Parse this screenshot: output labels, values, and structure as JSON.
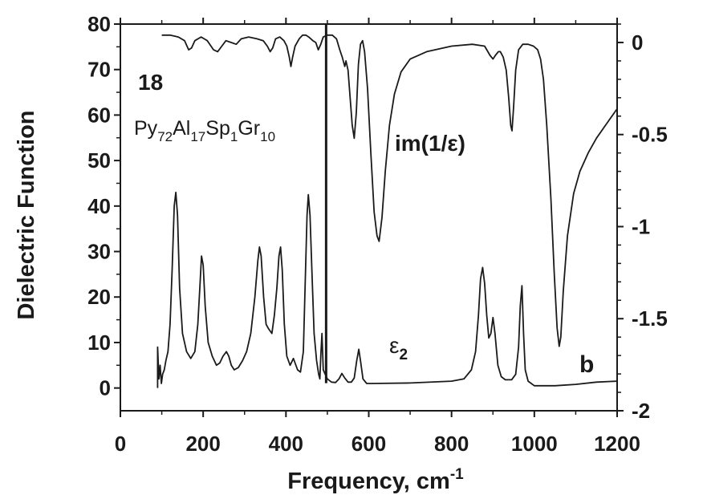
{
  "chart_data": {
    "type": "line",
    "title": "",
    "xlabel": "Frequency,  cm",
    "xlabel_superscript": "-1",
    "ylabel": "Dielectric  Function",
    "xlim": [
      0,
      1200
    ],
    "ylim": [
      -5,
      80
    ],
    "y2lim": [
      -2,
      0.1
    ],
    "x_ticks": [
      0,
      200,
      400,
      600,
      800,
      1000,
      1200
    ],
    "y_ticks": [
      0,
      10,
      20,
      30,
      40,
      50,
      60,
      70,
      80
    ],
    "y2_ticks": [
      0,
      -0.5,
      -1,
      -1.5,
      -2
    ],
    "y2_tick_labels": [
      "0",
      "-0.5",
      "-1",
      "-1.5",
      "-2"
    ],
    "grid": false,
    "annotations": {
      "sample_number": "18",
      "composition": [
        {
          "t": "Py",
          "sub": false
        },
        {
          "t": "72",
          "sub": true
        },
        {
          "t": "Al",
          "sub": false
        },
        {
          "t": "17",
          "sub": true
        },
        {
          "t": "Sp",
          "sub": false
        },
        {
          "t": "1",
          "sub": true
        },
        {
          "t": "Gr",
          "sub": false
        },
        {
          "t": "10",
          "sub": true
        }
      ],
      "im_label": "im(1/ε)",
      "eps_label": "ε",
      "eps_sub": "2",
      "panel_label": "b"
    },
    "divider_x": 497,
    "series": [
      {
        "axis": "left",
        "points": [
          [
            90,
            0
          ],
          [
            90,
            9
          ],
          [
            93,
            2
          ],
          [
            96,
            5
          ],
          [
            99,
            1
          ],
          [
            102,
            3
          ],
          [
            106,
            4
          ],
          [
            110,
            6
          ],
          [
            115,
            8
          ],
          [
            120,
            14
          ],
          [
            125,
            26
          ],
          [
            130,
            40
          ],
          [
            134,
            43
          ],
          [
            138,
            38
          ],
          [
            143,
            22
          ],
          [
            150,
            12
          ],
          [
            160,
            8
          ],
          [
            170,
            6.5
          ],
          [
            180,
            8
          ],
          [
            187,
            14
          ],
          [
            192,
            22
          ],
          [
            196,
            29
          ],
          [
            200,
            27
          ],
          [
            205,
            18
          ],
          [
            212,
            10
          ],
          [
            222,
            7
          ],
          [
            232,
            5
          ],
          [
            240,
            5.5
          ],
          [
            248,
            7
          ],
          [
            256,
            8
          ],
          [
            262,
            7
          ],
          [
            268,
            5
          ],
          [
            275,
            4
          ],
          [
            285,
            4.5
          ],
          [
            295,
            6
          ],
          [
            305,
            8
          ],
          [
            315,
            12
          ],
          [
            325,
            20
          ],
          [
            332,
            28
          ],
          [
            336,
            31
          ],
          [
            340,
            29
          ],
          [
            346,
            20
          ],
          [
            352,
            14
          ],
          [
            358,
            13
          ],
          [
            366,
            12
          ],
          [
            372,
            16
          ],
          [
            378,
            22
          ],
          [
            383,
            29
          ],
          [
            387,
            31
          ],
          [
            391,
            26
          ],
          [
            396,
            14
          ],
          [
            402,
            7
          ],
          [
            410,
            5
          ],
          [
            418,
            6.5
          ],
          [
            422,
            5.5
          ],
          [
            428,
            4
          ],
          [
            435,
            3.5
          ],
          [
            442,
            8
          ],
          [
            447,
            25
          ],
          [
            451,
            38
          ],
          [
            454,
            42.5
          ],
          [
            458,
            38
          ],
          [
            463,
            25
          ],
          [
            468,
            12
          ],
          [
            474,
            6
          ],
          [
            479,
            3
          ],
          [
            482,
            2
          ],
          [
            484,
            7
          ],
          [
            487,
            12
          ],
          [
            490,
            4
          ],
          [
            495,
            3
          ],
          [
            500,
            2
          ],
          [
            510,
            1.3
          ],
          [
            520,
            1.2
          ],
          [
            528,
            2
          ],
          [
            535,
            3.2
          ],
          [
            542,
            2.2
          ],
          [
            550,
            1.3
          ],
          [
            558,
            1.3
          ],
          [
            565,
            2.2
          ],
          [
            571,
            6
          ],
          [
            576,
            8.5
          ],
          [
            580,
            6
          ],
          [
            586,
            2
          ],
          [
            595,
            1
          ],
          [
            610,
            1
          ],
          [
            700,
            1.1
          ],
          [
            800,
            1.5
          ],
          [
            830,
            2
          ],
          [
            848,
            4
          ],
          [
            858,
            8
          ],
          [
            865,
            16
          ],
          [
            870,
            24
          ],
          [
            875,
            26.5
          ],
          [
            880,
            23
          ],
          [
            885,
            16
          ],
          [
            890,
            11
          ],
          [
            895,
            12
          ],
          [
            900,
            15.5
          ],
          [
            905,
            12
          ],
          [
            912,
            5
          ],
          [
            920,
            2.5
          ],
          [
            930,
            1.8
          ],
          [
            945,
            1.8
          ],
          [
            955,
            3
          ],
          [
            962,
            9
          ],
          [
            966,
            18
          ],
          [
            970,
            22.5
          ],
          [
            974,
            12
          ],
          [
            978,
            4
          ],
          [
            985,
            1.5
          ],
          [
            1000,
            0.5
          ],
          [
            1050,
            0.5
          ],
          [
            1100,
            0.8
          ],
          [
            1150,
            1.3
          ],
          [
            1200,
            1.5
          ]
        ]
      },
      {
        "axis": "right",
        "points": [
          [
            100,
            0.04
          ],
          [
            120,
            0.04
          ],
          [
            140,
            0.03
          ],
          [
            155,
            0.01
          ],
          [
            165,
            -0.04
          ],
          [
            172,
            -0.03
          ],
          [
            180,
            0.01
          ],
          [
            195,
            0.03
          ],
          [
            210,
            0.01
          ],
          [
            225,
            -0.04
          ],
          [
            235,
            -0.05
          ],
          [
            245,
            -0.02
          ],
          [
            255,
            0.01
          ],
          [
            268,
            0.0
          ],
          [
            280,
            -0.01
          ],
          [
            292,
            0.02
          ],
          [
            310,
            0.03
          ],
          [
            330,
            0.02
          ],
          [
            345,
            0.01
          ],
          [
            355,
            -0.02
          ],
          [
            362,
            -0.05
          ],
          [
            368,
            -0.03
          ],
          [
            375,
            0.02
          ],
          [
            385,
            0.03
          ],
          [
            395,
            0.01
          ],
          [
            402,
            -0.02
          ],
          [
            408,
            -0.08
          ],
          [
            412,
            -0.13
          ],
          [
            416,
            -0.08
          ],
          [
            422,
            -0.02
          ],
          [
            432,
            0.02
          ],
          [
            440,
            0.04
          ],
          [
            448,
            0.04
          ],
          [
            455,
            0.03
          ],
          [
            465,
            0.01
          ],
          [
            472,
            0.0
          ],
          [
            478,
            -0.04
          ],
          [
            484,
            -0.01
          ],
          [
            490,
            0.03
          ],
          [
            500,
            0.04
          ],
          [
            512,
            0.04
          ],
          [
            522,
            0.02
          ],
          [
            530,
            -0.04
          ],
          [
            536,
            -0.08
          ],
          [
            542,
            -0.13
          ],
          [
            545,
            -0.1
          ],
          [
            550,
            -0.15
          ],
          [
            555,
            -0.3
          ],
          [
            560,
            -0.45
          ],
          [
            565,
            -0.52
          ],
          [
            570,
            -0.38
          ],
          [
            575,
            -0.12
          ],
          [
            580,
            -0.01
          ],
          [
            585,
            0.01
          ],
          [
            590,
            -0.05
          ],
          [
            597,
            -0.25
          ],
          [
            605,
            -0.6
          ],
          [
            613,
            -0.92
          ],
          [
            620,
            -1.05
          ],
          [
            625,
            -1.08
          ],
          [
            632,
            -0.95
          ],
          [
            640,
            -0.7
          ],
          [
            650,
            -0.45
          ],
          [
            662,
            -0.28
          ],
          [
            678,
            -0.16
          ],
          [
            700,
            -0.09
          ],
          [
            740,
            -0.05
          ],
          [
            800,
            -0.02
          ],
          [
            850,
            -0.01
          ],
          [
            880,
            -0.02
          ],
          [
            893,
            -0.07
          ],
          [
            900,
            -0.09
          ],
          [
            906,
            -0.07
          ],
          [
            913,
            -0.05
          ],
          [
            918,
            -0.05
          ],
          [
            925,
            -0.08
          ],
          [
            932,
            -0.15
          ],
          [
            938,
            -0.3
          ],
          [
            943,
            -0.45
          ],
          [
            946,
            -0.48
          ],
          [
            950,
            -0.35
          ],
          [
            955,
            -0.15
          ],
          [
            962,
            -0.04
          ],
          [
            972,
            -0.01
          ],
          [
            985,
            -0.01
          ],
          [
            998,
            -0.02
          ],
          [
            1008,
            -0.04
          ],
          [
            1015,
            -0.09
          ],
          [
            1022,
            -0.2
          ],
          [
            1030,
            -0.45
          ],
          [
            1040,
            -0.85
          ],
          [
            1048,
            -1.25
          ],
          [
            1055,
            -1.55
          ],
          [
            1060,
            -1.65
          ],
          [
            1064,
            -1.6
          ],
          [
            1070,
            -1.35
          ],
          [
            1080,
            -1.05
          ],
          [
            1095,
            -0.82
          ],
          [
            1110,
            -0.7
          ],
          [
            1130,
            -0.6
          ],
          [
            1150,
            -0.52
          ],
          [
            1175,
            -0.44
          ],
          [
            1200,
            -0.36
          ]
        ]
      }
    ]
  }
}
